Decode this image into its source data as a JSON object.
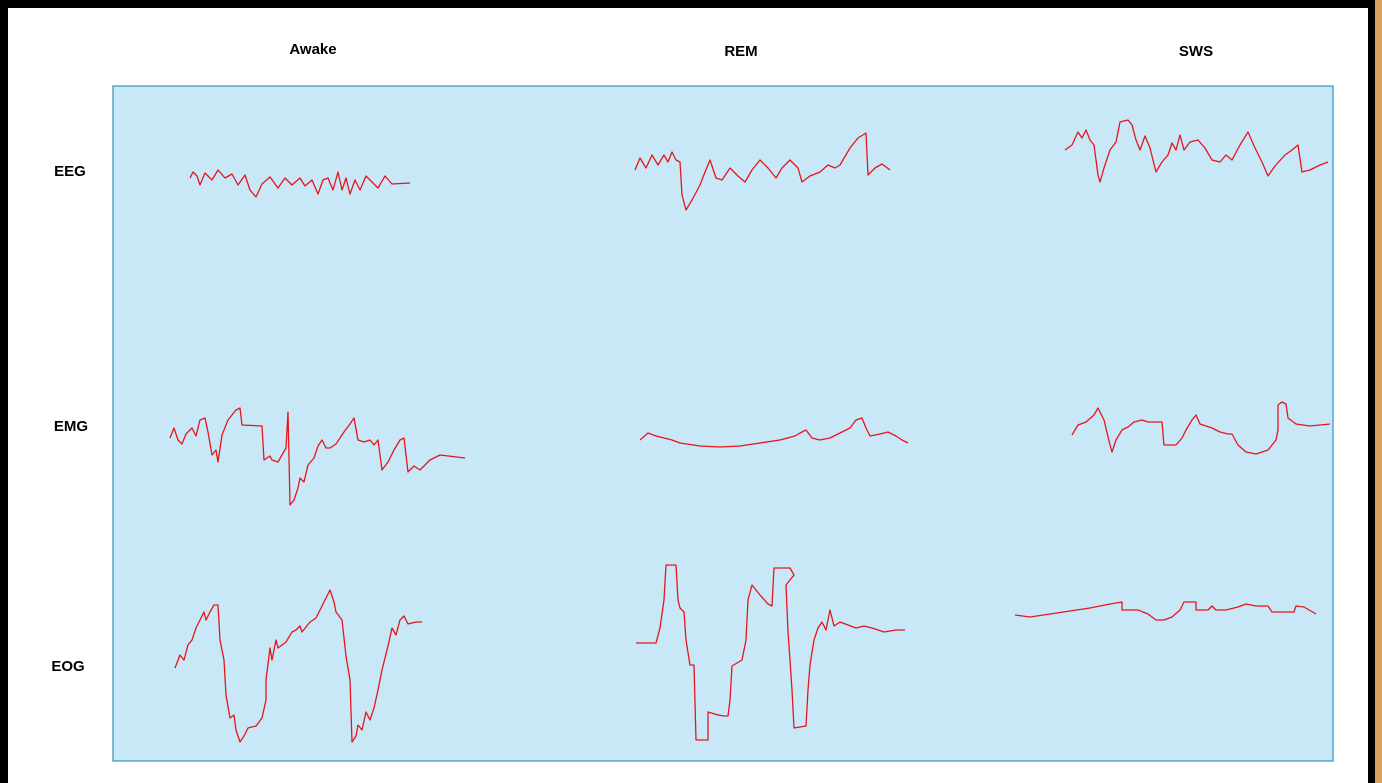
{
  "columns": [
    "Awake",
    "REM",
    "SWS"
  ],
  "rows": [
    "EEG",
    "EMG",
    "EOG"
  ]
}
